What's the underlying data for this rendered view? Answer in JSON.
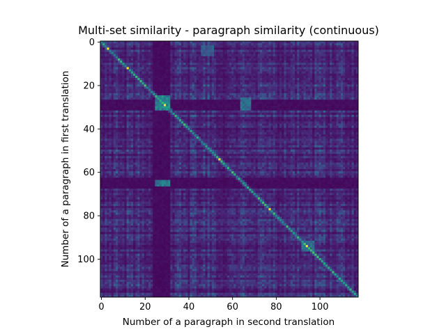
{
  "chart_data": {
    "type": "heatmap",
    "title": "Multi-set similarity - paragraph similarity (continuous)",
    "xlabel": "Number of a paragraph in second translation",
    "ylabel": "Number of a paragraph in first translation",
    "n_rows": 118,
    "n_cols": 118,
    "xlim": [
      -0.5,
      117.5
    ],
    "ylim": [
      117.5,
      -0.5
    ],
    "x_ticks": [
      0,
      20,
      40,
      60,
      80,
      100
    ],
    "y_ticks": [
      0,
      20,
      40,
      60,
      80,
      100
    ],
    "colormap": "viridis",
    "value_range": [
      0,
      1
    ],
    "grid": false,
    "diagonal": {
      "description_values": "high similarity along the main diagonal",
      "peak_cells": [
        [
          3,
          3
        ],
        [
          12,
          12
        ],
        [
          29,
          29
        ],
        [
          54,
          54
        ],
        [
          77,
          77
        ],
        [
          94,
          94
        ]
      ],
      "peak_value": 1.0,
      "typical_value": 0.55
    },
    "bright_blocks": [
      {
        "rows": [
          25,
          31
        ],
        "cols": [
          25,
          31
        ],
        "value": 0.45
      },
      {
        "rows": [
          64,
          66
        ],
        "cols": [
          25,
          31
        ],
        "value": 0.4
      },
      {
        "rows": [
          26,
          31
        ],
        "cols": [
          64,
          68
        ],
        "value": 0.35
      },
      {
        "rows": [
          2,
          6
        ],
        "cols": [
          46,
          51
        ],
        "value": 0.28
      },
      {
        "rows": [
          92,
          96
        ],
        "cols": [
          92,
          97
        ],
        "value": 0.35
      }
    ],
    "dark_bands": {
      "rows": [
        27,
        28,
        29,
        30,
        31,
        63,
        64,
        65,
        66,
        67
      ],
      "cols": [
        24,
        25,
        26,
        27,
        28,
        29,
        30,
        31
      ],
      "value": 0.03
    },
    "background_value": 0.15
  }
}
